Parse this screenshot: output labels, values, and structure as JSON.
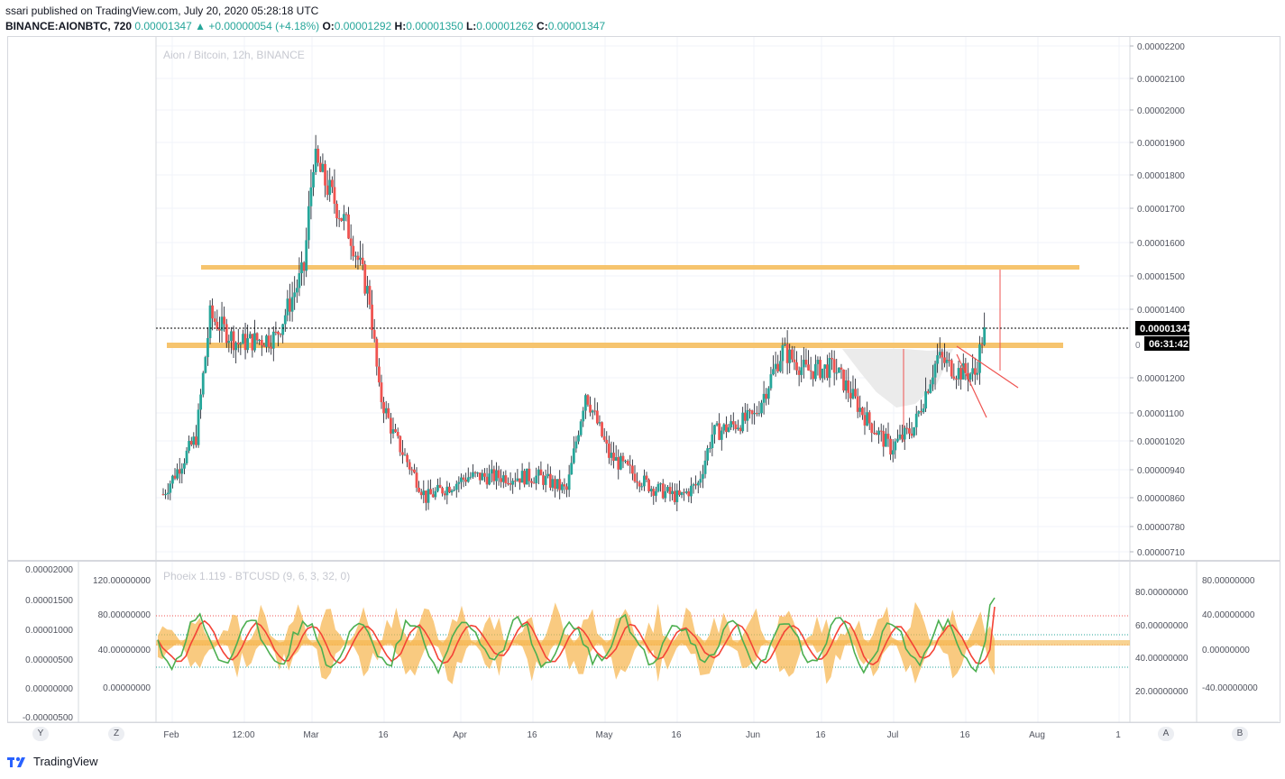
{
  "header": {
    "publisher_line": "ssari published on TradingView.com, July 20, 2020 05:28:18 UTC",
    "symbol_line": "BINANCE:AIONBTC, 720",
    "last": "0.00001347",
    "change_arrow": "▲",
    "change": "+0.00000054 (+4.18%)",
    "o_label": "O:",
    "o": "0.00001292",
    "h_label": "H:",
    "h": "0.00001350",
    "l_label": "L:",
    "l": "0.00001262",
    "c_label": "C:",
    "c": "0.00001347"
  },
  "main_chart": {
    "watermark": "Aion / Bitcoin, 12h, BINANCE",
    "price_ticks": [
      "0.00002200",
      "0.00002100",
      "0.00002000",
      "0.00001900",
      "0.00001800",
      "0.00001700",
      "0.00001600",
      "0.00001500",
      "0.00001400",
      "0.00001200",
      "0.00001100",
      "0.00001020",
      "0.00000940",
      "0.00000860",
      "0.00000780",
      "0.00000710"
    ],
    "last_price_label": "0.00001347",
    "countdown_label": "06:31:42",
    "resistance_label": "0"
  },
  "indicator": {
    "title": "Phoeix 1.119 - BTCUSD (9, 6, 3, 32, 0)",
    "left_far_ticks": [
      "0.00002000",
      "0.00001500",
      "0.00001000",
      "0.00000500",
      "0.00000000",
      "-0.00000500"
    ],
    "left_ticks": [
      "120.00000000",
      "80.00000000",
      "40.00000000",
      "0.00000000"
    ],
    "right_ticks": [
      "80.00000000",
      "60.00000000",
      "40.00000000",
      "20.00000000"
    ],
    "right_far_ticks": [
      "80.00000000",
      "40.00000000",
      "0.00000000",
      "-40.00000000"
    ]
  },
  "time_axis": {
    "labels": [
      "Feb",
      "12:00",
      "Mar",
      "16",
      "Apr",
      "16",
      "May",
      "16",
      "Jun",
      "16",
      "Jul",
      "16",
      "Aug",
      "1"
    ]
  },
  "axis_buttons": {
    "y": "Y",
    "z": "Z",
    "a": "A",
    "b": "B"
  },
  "footer": {
    "brand": "TradingView"
  },
  "colors": {
    "up": "#26a69a",
    "down": "#ef5350",
    "level": "#f6b44a",
    "green_line": "#4caf50",
    "red_line": "#f44336"
  },
  "chart_data": {
    "type": "candlestick",
    "title": "Aion / Bitcoin, 12h, BINANCE",
    "symbol": "BINANCE:AIONBTC",
    "x_range": [
      "Jan 27 2020",
      "Jul 20 2020"
    ],
    "ylim": [
      6.9e-06,
      2.22e-05
    ],
    "approx_close_path": [
      [
        "Jan 27",
        8.7e-06
      ],
      [
        "Feb 3",
        1.03e-05
      ],
      [
        "Feb 6",
        1.38e-05
      ],
      [
        "Feb 12",
        1.3e-05
      ],
      [
        "Feb 20",
        1.32e-05
      ],
      [
        "Feb 26",
        1.52e-05
      ],
      [
        "Feb 28",
        1.85e-05
      ],
      [
        "Mar 7",
        1.62e-05
      ],
      [
        "Mar 11",
        1.43e-05
      ],
      [
        "Mar 13",
        1.16e-05
      ],
      [
        "Mar 16",
        1.04e-05
      ],
      [
        "Mar 23",
        8.6e-06
      ],
      [
        "Apr 1",
        9.2e-06
      ],
      [
        "Apr 16",
        9.2e-06
      ],
      [
        "Apr 22",
        8.8e-06
      ],
      [
        "Apr 26",
        1.16e-05
      ],
      [
        "May 1",
        9.8e-06
      ],
      [
        "May 10",
        8.9e-06
      ],
      [
        "May 16",
        8.6e-06
      ],
      [
        "May 20",
        9e-06
      ],
      [
        "May 23",
        1.04e-05
      ],
      [
        "Jun 1",
        1.09e-05
      ],
      [
        "Jun 7",
        1.28e-05
      ],
      [
        "Jun 12",
        1.22e-05
      ],
      [
        "Jun 18",
        1.23e-05
      ],
      [
        "Jun 25",
        1.08e-05
      ],
      [
        "Jun 30",
        1e-05
      ],
      [
        "Jul 5",
        1.06e-05
      ],
      [
        "Jul 10",
        1.26e-05
      ],
      [
        "Jul 14",
        1.22e-05
      ],
      [
        "Jul 18",
        1.21e-05
      ],
      [
        "Jul 20",
        1.347e-05
      ]
    ],
    "last_close": 1.347e-05,
    "annotations": {
      "resistance_levels": [
        1.528e-05,
        1.297e-05
      ],
      "descending_trendline": true,
      "rounded_bottom_shape": true
    }
  }
}
